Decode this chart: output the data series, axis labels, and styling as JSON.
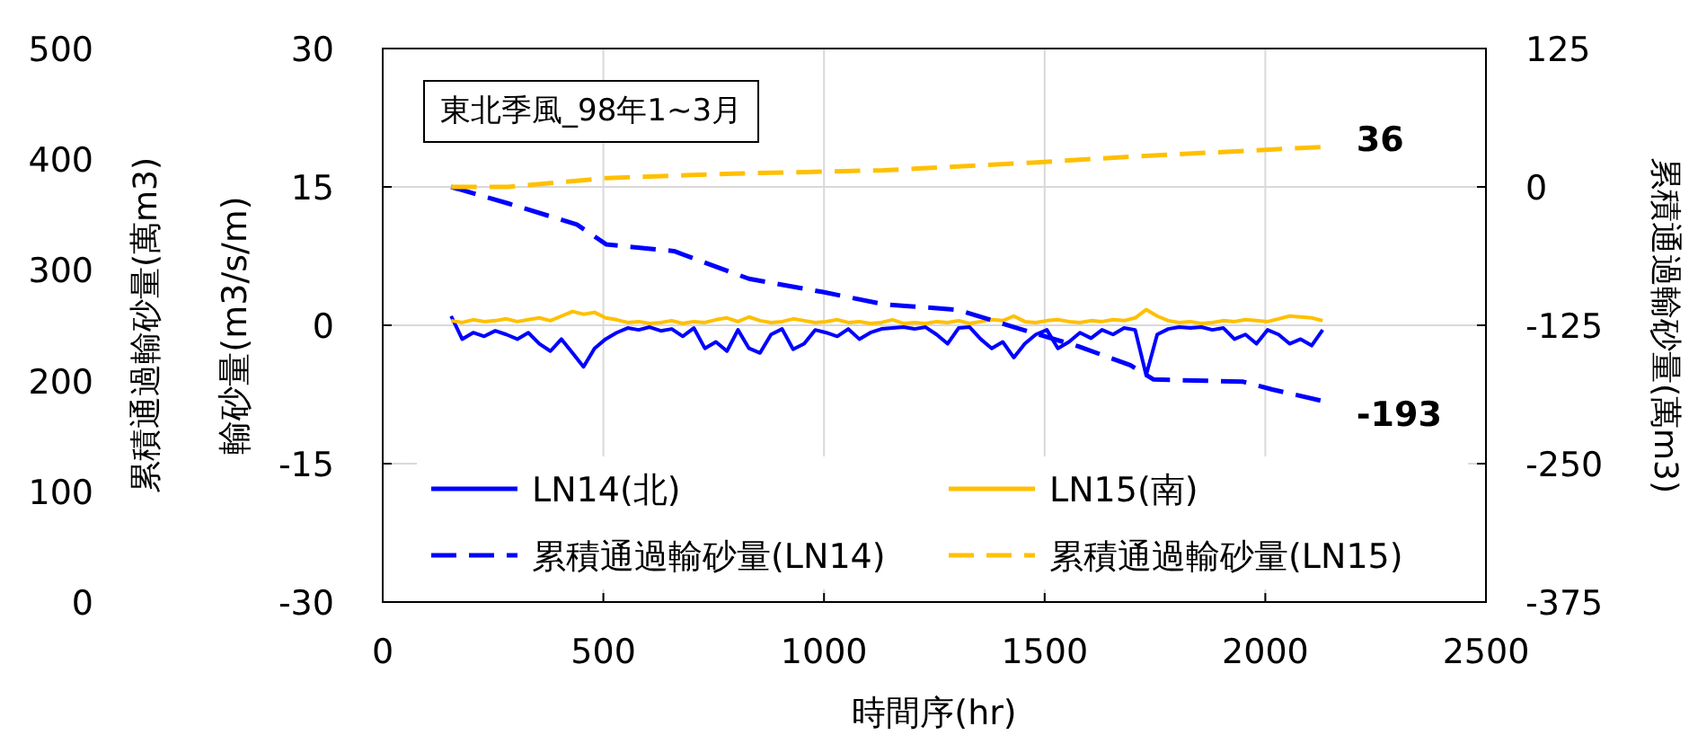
{
  "chart_data": {
    "type": "line",
    "title": "東北季風_98年1~3月",
    "xlabel": "時間序(hr)",
    "ylabel": "輸砂量(m3/s/m)",
    "y2label": "累積通過輸砂量(萬m3)",
    "y3label": "累積通過輸砂量(萬m3)",
    "xlim": [
      0,
      2500
    ],
    "xticks": [
      0,
      500,
      1000,
      1500,
      2000,
      2500
    ],
    "ylim": [
      -30,
      30
    ],
    "yticks": [
      -30,
      -15,
      0,
      15,
      30
    ],
    "y2lim": [
      -375,
      125
    ],
    "y2ticks": [
      -375,
      -250,
      -125,
      0,
      125
    ],
    "y3lim": [
      0,
      500
    ],
    "y3ticks": [
      0,
      100,
      200,
      300,
      400,
      500
    ],
    "grid": true,
    "legend": "bottom",
    "marker": "none",
    "x": [
      155,
      180,
      205,
      230,
      255,
      280,
      305,
      330,
      355,
      380,
      405,
      430,
      455,
      480,
      505,
      530,
      555,
      580,
      605,
      630,
      655,
      680,
      705,
      730,
      755,
      780,
      805,
      830,
      855,
      880,
      905,
      930,
      955,
      980,
      1005,
      1030,
      1055,
      1080,
      1105,
      1130,
      1155,
      1180,
      1205,
      1230,
      1255,
      1280,
      1305,
      1330,
      1355,
      1380,
      1405,
      1430,
      1455,
      1480,
      1505,
      1530,
      1555,
      1580,
      1605,
      1630,
      1655,
      1680,
      1705,
      1730,
      1755,
      1780,
      1805,
      1830,
      1855,
      1880,
      1905,
      1930,
      1955,
      1980,
      2005,
      2030,
      2055,
      2080,
      2105,
      2130
    ],
    "series": [
      {
        "name": "LN14(北)",
        "color": "#0000ff",
        "line_style": "solid",
        "values": [
          1.0,
          -1.5,
          -0.8,
          -1.2,
          -0.6,
          -1.0,
          -1.5,
          -0.8,
          -2.0,
          -2.8,
          -1.5,
          -3.0,
          -4.5,
          -2.5,
          -1.5,
          -0.8,
          -0.3,
          -0.5,
          -0.2,
          -0.6,
          -0.4,
          -1.2,
          -0.3,
          -2.5,
          -1.8,
          -2.8,
          -0.5,
          -2.5,
          -3.0,
          -1.0,
          -0.4,
          -2.6,
          -2.0,
          -0.5,
          -0.8,
          -1.2,
          -0.4,
          -1.5,
          -0.8,
          -0.4,
          -0.3,
          -0.2,
          -0.4,
          -0.2,
          -1.0,
          -2.0,
          -0.3,
          -0.2,
          -1.5,
          -2.5,
          -1.8,
          -3.5,
          -2.0,
          -1.0,
          -0.5,
          -2.5,
          -1.8,
          -0.8,
          -1.4,
          -0.5,
          -1.0,
          -0.3,
          -0.5,
          -5.4,
          -1.0,
          -0.4,
          -0.2,
          -0.3,
          -0.2,
          -0.5,
          -0.3,
          -1.5,
          -1.0,
          -2.0,
          -0.5,
          -1.0,
          -2.0,
          -1.5,
          -2.2,
          -0.5
        ]
      },
      {
        "name": "LN15(南)",
        "color": "#ffc000",
        "line_style": "solid",
        "values": [
          0.5,
          0.3,
          0.6,
          0.4,
          0.5,
          0.7,
          0.4,
          0.6,
          0.8,
          0.5,
          1.0,
          1.5,
          1.2,
          1.4,
          0.8,
          0.6,
          0.3,
          0.4,
          0.2,
          0.3,
          0.5,
          0.2,
          0.4,
          0.3,
          0.6,
          0.8,
          0.4,
          0.9,
          0.5,
          0.3,
          0.4,
          0.7,
          0.5,
          0.3,
          0.4,
          0.6,
          0.3,
          0.4,
          0.2,
          0.3,
          0.6,
          0.2,
          0.3,
          0.2,
          0.4,
          0.3,
          0.5,
          0.2,
          0.4,
          0.6,
          0.5,
          1.0,
          0.4,
          0.3,
          0.5,
          0.6,
          0.4,
          0.3,
          0.5,
          0.4,
          0.6,
          0.5,
          0.8,
          1.7,
          1.0,
          0.5,
          0.3,
          0.4,
          0.2,
          0.3,
          0.5,
          0.4,
          0.6,
          0.5,
          0.4,
          0.7,
          1.0,
          0.9,
          0.8,
          0.5
        ]
      },
      {
        "name": "累積通過輸砂量(LN14)",
        "color": "#0000ff",
        "line_style": "dashed",
        "axis": "y2",
        "x": [
          155,
          285,
          440,
          507,
          660,
          761,
          830,
          998,
          1135,
          1303,
          1441,
          1576,
          1694,
          1747,
          1950,
          2016,
          2125
        ],
        "values": [
          0,
          -15,
          -34,
          -52,
          -58,
          -73,
          -83,
          -95,
          -106,
          -111,
          -128,
          -144,
          -161,
          -174,
          -176,
          -183,
          -193
        ]
      },
      {
        "name": "累積通過輸砂量(LN15)",
        "color": "#ffc000",
        "line_style": "dashed",
        "axis": "y2",
        "x": [
          155,
          285,
          507,
          795,
          1135,
          1473,
          1728,
          2125
        ],
        "values": [
          0,
          0,
          8,
          12,
          15,
          22,
          28,
          36
        ]
      }
    ],
    "annotations": [
      "36",
      "-193"
    ]
  }
}
